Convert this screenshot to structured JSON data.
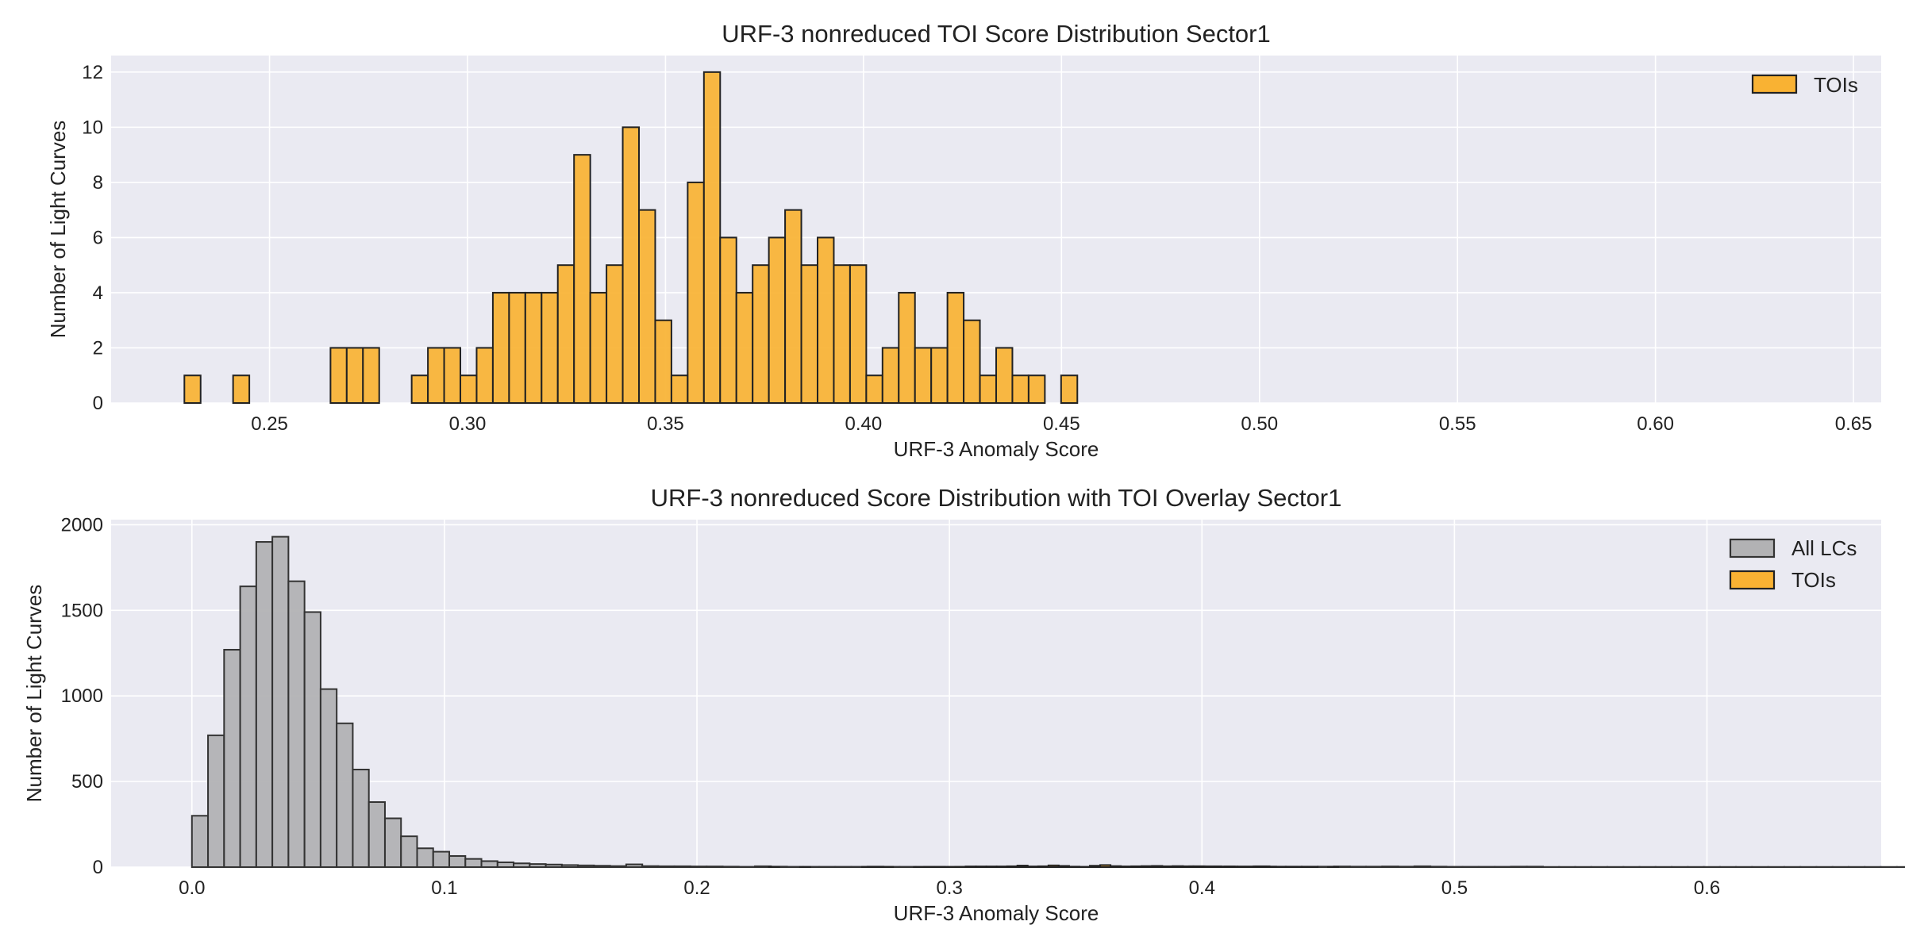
{
  "figure": {
    "background": "#ffffff",
    "plot_background": "#eaeaf2",
    "grid_color": "#ffffff"
  },
  "chart_data": [
    {
      "type": "bar",
      "subtype": "histogram",
      "title": "URF-3 nonreduced TOI Score Distribution Sector1",
      "xlabel": "URF-3 Anomaly Score",
      "ylabel": "Number of Light Curves",
      "xlim": [
        0.21,
        0.657
      ],
      "ylim": [
        0,
        12.6
      ],
      "xticks": [
        0.25,
        0.3,
        0.35,
        0.4,
        0.45,
        0.5,
        0.55,
        0.6,
        0.65
      ],
      "xtick_labels": [
        "0.25",
        "0.30",
        "0.35",
        "0.40",
        "0.45",
        "0.50",
        "0.55",
        "0.60",
        "0.65"
      ],
      "yticks": [
        0,
        2,
        4,
        6,
        8,
        10,
        12
      ],
      "ytick_labels": [
        "0",
        "2",
        "4",
        "6",
        "8",
        "10",
        "12"
      ],
      "grid": true,
      "legend_position": "top-right",
      "series": [
        {
          "name": "TOIs",
          "color": "#f9b233",
          "edge_color": "#222222",
          "bin_start": 0.2285,
          "bin_width": 0.0041,
          "values": [
            1,
            0,
            0,
            1,
            0,
            0,
            0,
            0,
            0,
            2,
            2,
            2,
            0,
            0,
            1,
            2,
            2,
            1,
            2,
            4,
            4,
            4,
            4,
            5,
            9,
            4,
            5,
            10,
            7,
            3,
            1,
            8,
            12,
            6,
            4,
            5,
            6,
            7,
            5,
            6,
            5,
            5,
            1,
            2,
            4,
            2,
            2,
            4,
            3,
            1,
            2,
            1,
            1,
            0,
            1,
            0,
            0,
            0,
            0,
            0,
            0,
            0,
            0,
            0,
            0,
            0,
            0,
            0,
            0,
            0,
            0,
            0,
            0,
            0,
            0,
            0,
            0,
            0,
            0,
            0,
            0,
            0,
            0,
            0,
            0,
            0,
            0,
            0,
            0,
            0,
            0,
            0,
            0,
            0,
            0,
            0,
            0,
            0,
            0,
            0
          ]
        }
      ]
    },
    {
      "type": "bar",
      "subtype": "histogram",
      "title": "URF-3 nonreduced Score Distribution with TOI Overlay Sector1",
      "xlabel": "URF-3 Anomaly Score",
      "ylabel": "Number of Light Curves",
      "xlim": [
        -0.032,
        0.669
      ],
      "ylim": [
        0,
        2030
      ],
      "xticks": [
        0.0,
        0.1,
        0.2,
        0.3,
        0.4,
        0.5,
        0.6
      ],
      "xtick_labels": [
        "0.0",
        "0.1",
        "0.2",
        "0.3",
        "0.4",
        "0.5",
        "0.6"
      ],
      "yticks": [
        0,
        500,
        1000,
        1500,
        2000
      ],
      "ytick_labels": [
        "0",
        "500",
        "1000",
        "1500",
        "2000"
      ],
      "grid": true,
      "legend_position": "top-right",
      "series": [
        {
          "name": "All LCs",
          "color": "#b2b2b4",
          "edge_color": "#333333",
          "bin_start": 0.0,
          "bin_width": 0.00637,
          "values": [
            300,
            770,
            1270,
            1640,
            1900,
            1930,
            1670,
            1490,
            1040,
            840,
            570,
            380,
            285,
            180,
            110,
            90,
            65,
            48,
            35,
            28,
            22,
            18,
            15,
            12,
            10,
            8,
            6,
            16,
            6,
            5,
            5,
            4,
            4,
            3,
            2,
            5,
            3,
            2,
            2,
            2,
            2,
            2,
            3,
            2,
            2,
            2,
            2,
            2,
            2,
            2,
            2,
            2,
            2,
            2,
            2,
            2,
            2,
            3,
            3,
            3,
            4,
            3,
            5,
            5,
            4,
            4,
            5,
            3,
            3,
            3,
            3,
            4,
            3,
            3,
            4,
            3,
            5,
            3,
            2,
            2,
            2,
            2,
            3,
            3,
            1,
            1,
            1,
            1,
            1,
            1,
            1,
            1,
            1,
            1,
            1,
            1,
            1,
            1,
            1,
            1,
            1,
            1,
            1,
            1,
            1,
            1,
            1,
            1,
            1,
            1,
            1,
            1,
            1,
            1,
            1,
            1,
            1,
            1,
            1,
            1,
            1,
            1,
            1,
            1,
            1,
            1,
            1,
            1,
            1,
            1,
            1,
            1,
            1,
            1,
            1,
            1,
            1,
            1,
            1,
            1,
            1,
            1,
            1,
            1,
            1,
            1,
            1,
            1,
            1,
            1,
            1,
            1,
            1,
            1,
            1,
            1,
            1,
            1,
            1,
            1,
            1,
            1,
            1,
            1,
            1,
            1,
            1,
            1,
            1,
            1,
            1,
            1,
            1,
            1,
            1,
            1,
            1,
            1,
            1,
            1,
            1,
            1,
            1,
            1,
            1,
            1,
            1,
            1,
            1,
            1,
            1,
            1,
            1,
            1,
            1,
            1,
            1,
            1,
            1,
            1
          ]
        },
        {
          "name": "TOIs",
          "color": "#f9b233",
          "edge_color": "#222222",
          "bin_start": 0.2285,
          "bin_width": 0.0041,
          "values": [
            1,
            0,
            0,
            1,
            0,
            0,
            0,
            0,
            0,
            2,
            2,
            2,
            0,
            0,
            1,
            2,
            2,
            1,
            2,
            4,
            4,
            4,
            4,
            5,
            9,
            4,
            5,
            10,
            7,
            3,
            1,
            8,
            12,
            6,
            4,
            5,
            6,
            7,
            5,
            6,
            5,
            5,
            1,
            2,
            4,
            2,
            2,
            4,
            3,
            1,
            2,
            1,
            1,
            0,
            1,
            0,
            0,
            0,
            0,
            0,
            0,
            0,
            0,
            0,
            0,
            0,
            0,
            0,
            0,
            0,
            0,
            0,
            0,
            0,
            0,
            0,
            0,
            0,
            0,
            0,
            0,
            0,
            0,
            0,
            0,
            0,
            0,
            0,
            0,
            0,
            0,
            0,
            0,
            0,
            0,
            0,
            0,
            0,
            0,
            0
          ]
        }
      ]
    }
  ]
}
